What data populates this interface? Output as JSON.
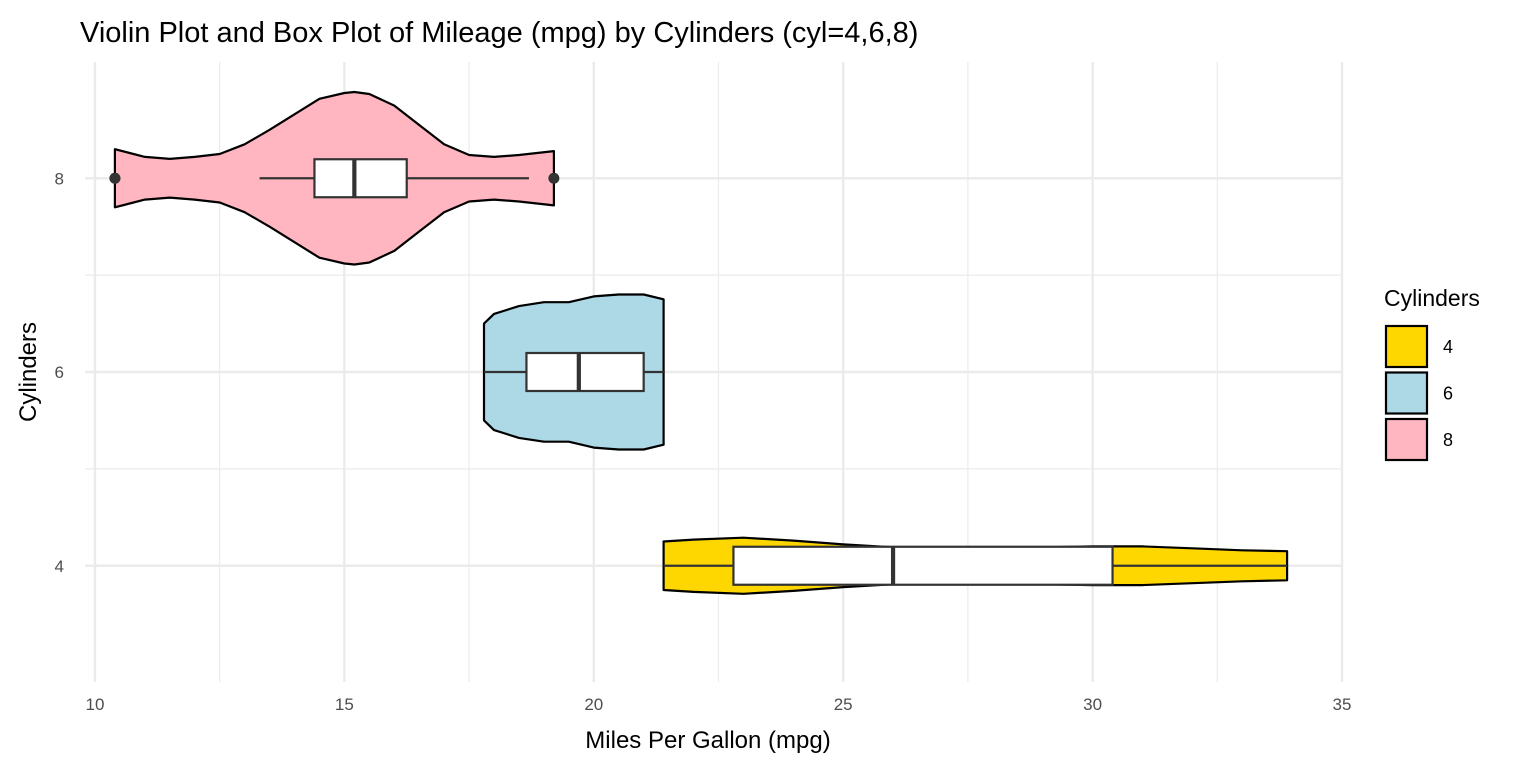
{
  "chart_data": {
    "type": "violin",
    "title": "Violin Plot and Box Plot of Mileage (mpg) by Cylinders (cyl=4,6,8)",
    "xlabel": "Miles Per Gallon (mpg)",
    "ylabel": "Cylinders",
    "xlim": [
      9.8,
      35
    ],
    "ylim": [
      2.8,
      9.2
    ],
    "x_ticks": [
      10,
      15,
      20,
      25,
      30,
      35
    ],
    "y_ticks": [
      4,
      6,
      8
    ],
    "orientation": "horizontal",
    "grid": true,
    "legend": {
      "title": "Cylinders",
      "position": "right",
      "entries": [
        {
          "label": "4",
          "color": "#FFD700"
        },
        {
          "label": "6",
          "color": "#ADD8E6"
        },
        {
          "label": "8",
          "color": "#FFB6C1"
        }
      ]
    },
    "series": [
      {
        "name": "4",
        "y": 4,
        "color": "#FFD700",
        "box": {
          "min": 21.4,
          "q1": 22.8,
          "median": 26.0,
          "q3": 30.4,
          "max": 33.9
        },
        "outliers": [],
        "density": {
          "x": [
            21.4,
            22.0,
            23.0,
            24.0,
            25.0,
            26.0,
            27.0,
            28.0,
            29.0,
            30.0,
            31.0,
            32.0,
            33.0,
            33.9
          ],
          "half_width": [
            0.25,
            0.27,
            0.29,
            0.26,
            0.22,
            0.19,
            0.18,
            0.18,
            0.19,
            0.2,
            0.2,
            0.18,
            0.16,
            0.15
          ]
        }
      },
      {
        "name": "6",
        "y": 6,
        "color": "#ADD8E6",
        "box": {
          "min": 17.8,
          "q1": 18.65,
          "median": 19.7,
          "q3": 21.0,
          "max": 21.4
        },
        "outliers": [],
        "density": {
          "x": [
            17.8,
            18.0,
            18.5,
            19.0,
            19.5,
            20.0,
            20.5,
            21.0,
            21.4
          ],
          "half_width": [
            0.5,
            0.6,
            0.68,
            0.72,
            0.72,
            0.78,
            0.8,
            0.8,
            0.75
          ]
        }
      },
      {
        "name": "8",
        "y": 8,
        "color": "#FFB6C1",
        "box": {
          "min": 13.3,
          "q1": 14.4,
          "median": 15.2,
          "q3": 16.25,
          "max": 18.7
        },
        "outliers": [
          10.4,
          10.4,
          19.2
        ],
        "density": {
          "x": [
            10.4,
            11.0,
            11.5,
            12.0,
            12.5,
            13.0,
            13.5,
            14.0,
            14.5,
            15.0,
            15.2,
            15.5,
            16.0,
            16.5,
            17.0,
            17.5,
            18.0,
            18.5,
            19.2
          ],
          "half_width": [
            0.3,
            0.22,
            0.2,
            0.22,
            0.25,
            0.35,
            0.5,
            0.66,
            0.82,
            0.88,
            0.89,
            0.87,
            0.75,
            0.55,
            0.35,
            0.24,
            0.22,
            0.24,
            0.28
          ]
        }
      }
    ]
  }
}
